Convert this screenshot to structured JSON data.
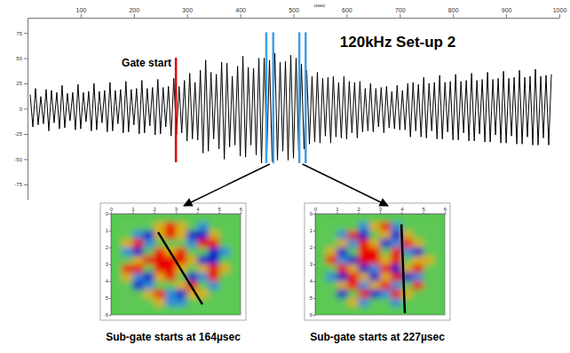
{
  "chart_data": [
    {
      "type": "line",
      "title": "120kHz Set-up 2",
      "x_label": "usec",
      "xlim": [
        0,
        1000
      ],
      "xticks": [
        100,
        200,
        300,
        400,
        500,
        600,
        700,
        800,
        900,
        1000
      ],
      "ylim": [
        -90,
        90
      ],
      "yticks": [
        -75,
        -50,
        -25,
        0,
        25,
        50,
        75
      ],
      "color": "#000000",
      "x": [
        5,
        10,
        15,
        20,
        25,
        30,
        35,
        40,
        45,
        50,
        55,
        60,
        65,
        70,
        75,
        80,
        85,
        90,
        95,
        100,
        105,
        110,
        115,
        120,
        125,
        130,
        135,
        140,
        145,
        150,
        155,
        160,
        165,
        170,
        175,
        180,
        185,
        190,
        195,
        200,
        205,
        210,
        215,
        220,
        225,
        230,
        235,
        240,
        245,
        250,
        255,
        260,
        265,
        270,
        275,
        280,
        285,
        290,
        295,
        300,
        305,
        310,
        315,
        320,
        325,
        330,
        335,
        340,
        345,
        350,
        355,
        360,
        365,
        370,
        375,
        380,
        385,
        390,
        395,
        400,
        405,
        410,
        415,
        420,
        425,
        430,
        435,
        440,
        445,
        450,
        455,
        460,
        465,
        470,
        475,
        480,
        485,
        490,
        495,
        500,
        505,
        510,
        515,
        520,
        525,
        530,
        535,
        540,
        545,
        550,
        555,
        560,
        565,
        570,
        575,
        580,
        585,
        590,
        595,
        600,
        605,
        610,
        615,
        620,
        625,
        630,
        635,
        640,
        645,
        650,
        655,
        660,
        665,
        670,
        675,
        680,
        685,
        690,
        695,
        700,
        705,
        710,
        715,
        720,
        725,
        730,
        735,
        740,
        745,
        750,
        755,
        760,
        765,
        770,
        775,
        780,
        785,
        790,
        795,
        800,
        805,
        810,
        815,
        820,
        825,
        830,
        835,
        840,
        845,
        850,
        855,
        860,
        865,
        870,
        875,
        880,
        885,
        890,
        895,
        900,
        905,
        910,
        915,
        920,
        925,
        930,
        935,
        940,
        945,
        950,
        955,
        960,
        965,
        970,
        975,
        980,
        985
      ],
      "values": [
        14,
        -18,
        20,
        -16,
        12,
        -15,
        19,
        -22,
        18,
        -14,
        16,
        -20,
        23,
        -19,
        15,
        -12,
        16,
        -21,
        24,
        -20,
        16,
        -13,
        17,
        -22,
        25,
        -21,
        17,
        -14,
        18,
        -23,
        26,
        -22,
        18,
        -15,
        19,
        -24,
        27,
        -23,
        19,
        -16,
        20,
        -25,
        28,
        -24,
        20,
        -17,
        21,
        -26,
        29,
        -25,
        21,
        -18,
        22,
        -27,
        30,
        -26,
        22,
        -24,
        28,
        -32,
        35,
        -30,
        26,
        -31,
        38,
        -44,
        48,
        -42,
        36,
        -30,
        34,
        -40,
        46,
        -50,
        45,
        -38,
        32,
        -36,
        42,
        -47,
        52,
        -48,
        41,
        -36,
        40,
        -46,
        50,
        -54,
        50,
        -44,
        48,
        -52,
        55,
        -51,
        46,
        -42,
        47,
        -51,
        53,
        -49,
        50,
        -46,
        44,
        -40,
        38,
        -35,
        32,
        -33,
        36,
        -34,
        30,
        -27,
        31,
        -34,
        32,
        -28,
        26,
        -29,
        32,
        -30,
        27,
        -24,
        26,
        -29,
        27,
        -23,
        20,
        -22,
        25,
        -23,
        20,
        -18,
        21,
        -24,
        22,
        -19,
        17,
        -20,
        23,
        -21,
        18,
        -21,
        25,
        -28,
        26,
        -22,
        24,
        -28,
        31,
        -29,
        25,
        -22,
        26,
        -30,
        33,
        -30,
        26,
        -23,
        27,
        -31,
        34,
        -31,
        27,
        -24,
        28,
        -32,
        35,
        -32,
        28,
        -25,
        29,
        -33,
        36,
        -33,
        29,
        -26,
        30,
        -34,
        37,
        -34,
        30,
        -27,
        31,
        -35,
        38,
        -35,
        31,
        -28,
        32,
        -36,
        39,
        -36,
        32,
        -29,
        33,
        -36,
        34
      ],
      "gate": {
        "label": "Gate start",
        "x": 279,
        "color": "#e00000"
      },
      "sub_gates": {
        "color": "#3fa0e6",
        "x": [
          [
            449,
            462
          ],
          [
            511,
            523
          ]
        ]
      }
    },
    {
      "type": "heatmap",
      "title": "Sub-gate starts at 164µsec",
      "xlim": [
        0,
        6
      ],
      "xticks": [
        0,
        1,
        2,
        3,
        4,
        5,
        6
      ],
      "ylim": [
        0,
        6
      ],
      "yticks": [
        0,
        1,
        2,
        3,
        4,
        5,
        6
      ],
      "cells": [
        [
          0,
          0,
          0,
          0,
          0,
          0,
          0,
          0,
          0,
          0,
          0,
          0
        ],
        [
          0,
          0,
          0,
          0,
          0.5,
          1,
          0.5,
          0,
          -0.5,
          0,
          0,
          0
        ],
        [
          0,
          0,
          -0.5,
          -1,
          0.5,
          1,
          0.5,
          -1,
          -1,
          0.5,
          0,
          0
        ],
        [
          0,
          0.5,
          1,
          -0.5,
          0,
          0,
          0,
          -0.5,
          1,
          1,
          0,
          0
        ],
        [
          0,
          -0.5,
          -1,
          0,
          1,
          0.5,
          1,
          0,
          0,
          -1,
          -0.5,
          0
        ],
        [
          0,
          0,
          0.5,
          1,
          1,
          1,
          1,
          0.5,
          -1,
          -1,
          0,
          0
        ],
        [
          0,
          1,
          1,
          0,
          1,
          1,
          0.5,
          0,
          0.5,
          1,
          0.5,
          0
        ],
        [
          0,
          0.5,
          -0.5,
          -1,
          0.5,
          1,
          0,
          -1,
          -0.5,
          1,
          0,
          0
        ],
        [
          0,
          0,
          -1,
          -0.5,
          0,
          0,
          0.5,
          1,
          0,
          -0.5,
          0,
          0
        ],
        [
          0,
          0,
          0,
          0.5,
          1,
          -0.5,
          -1,
          0.5,
          0.5,
          0,
          0,
          0
        ],
        [
          0,
          0,
          0,
          0,
          0.5,
          -0.5,
          -0.5,
          0,
          0,
          0,
          0,
          0
        ],
        [
          0,
          0,
          0,
          0,
          0,
          0,
          0,
          0,
          0,
          0,
          0,
          0
        ]
      ],
      "line": [
        [
          2.18,
          1.1
        ],
        [
          4.23,
          5.37
        ]
      ]
    },
    {
      "type": "heatmap",
      "title": "Sub-gate starts at 227µsec",
      "xlim": [
        0,
        6
      ],
      "xticks": [
        0,
        1,
        2,
        3,
        4,
        5,
        6
      ],
      "ylim": [
        0,
        6
      ],
      "yticks": [
        0,
        1,
        2,
        3,
        4,
        5,
        6
      ],
      "cells": [
        [
          0,
          0,
          0,
          0,
          0,
          0,
          0,
          0,
          0,
          0,
          0,
          0
        ],
        [
          0,
          0,
          0,
          0,
          -0.5,
          0.5,
          1,
          -0.5,
          0,
          0,
          0,
          0
        ],
        [
          0,
          0,
          -0.5,
          1,
          -1,
          0,
          0.5,
          -1,
          0.5,
          0,
          0,
          0
        ],
        [
          0,
          0,
          0.5,
          -0.5,
          1,
          0.5,
          -1,
          -0.5,
          1,
          0.5,
          0,
          0
        ],
        [
          0,
          0.5,
          -1,
          0,
          1,
          1,
          0,
          1,
          -0.5,
          -1,
          0,
          0
        ],
        [
          0,
          1,
          -0.5,
          -1,
          1,
          1,
          0.5,
          1,
          0,
          0.5,
          0.5,
          0
        ],
        [
          0,
          0,
          1,
          0.5,
          -1,
          -0.5,
          1,
          -1,
          0.5,
          1,
          0,
          0
        ],
        [
          0,
          -0.5,
          -1,
          1,
          0.5,
          -1,
          0.5,
          1,
          -1,
          -0.5,
          0,
          0
        ],
        [
          0,
          0,
          0.5,
          1,
          -0.5,
          0.5,
          1,
          -0.5,
          0,
          1,
          0,
          0
        ],
        [
          0,
          0,
          -1,
          0,
          1,
          -1,
          -0.5,
          1,
          0.5,
          0,
          0,
          0
        ],
        [
          0,
          0,
          0,
          0.5,
          -0.5,
          0,
          0,
          -0.5,
          0,
          0,
          0,
          0
        ],
        [
          0,
          0,
          0,
          0,
          0,
          0,
          0,
          0,
          0,
          0,
          0,
          0
        ]
      ],
      "line": [
        [
          3.99,
          0.63
        ],
        [
          4.15,
          5.9
        ]
      ]
    }
  ]
}
